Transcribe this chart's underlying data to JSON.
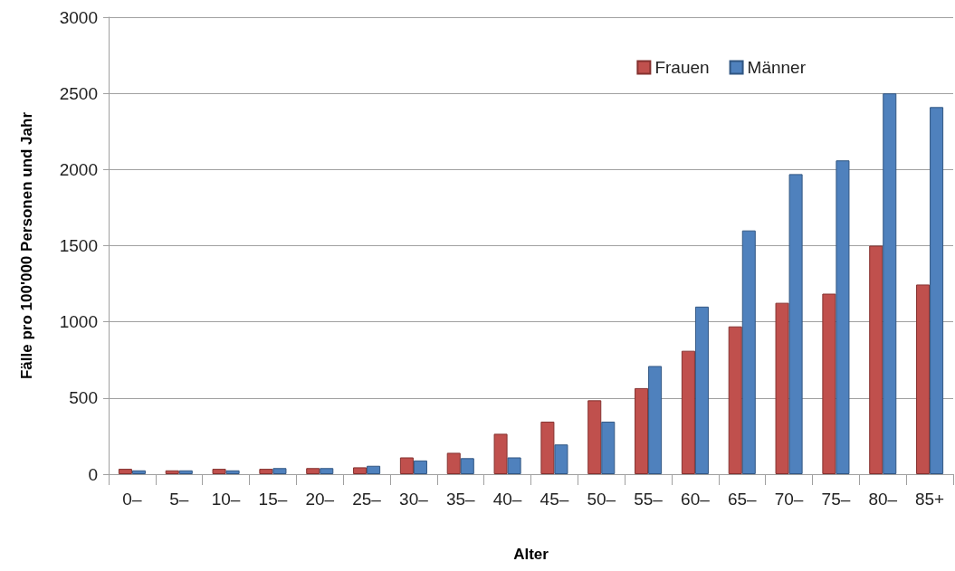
{
  "chart_data": {
    "type": "bar",
    "xlabel": "Alter",
    "ylabel": "Fälle pro 100'000 Personen und Jahr",
    "categories": [
      "0–",
      "5–",
      "10–",
      "15–",
      "20–",
      "25–",
      "30–",
      "35–",
      "40–",
      "45–",
      "50–",
      "55–",
      "60–",
      "65–",
      "70–",
      "75–",
      "80–",
      "85+"
    ],
    "series": [
      {
        "name": "Frauen",
        "color": "#c0504d",
        "values": [
          35,
          25,
          35,
          35,
          40,
          45,
          110,
          140,
          265,
          345,
          485,
          565,
          810,
          970,
          1125,
          1185,
          1500,
          1245
        ]
      },
      {
        "name": "Männer",
        "color": "#4f81bd",
        "values": [
          25,
          25,
          25,
          40,
          40,
          55,
          90,
          105,
          110,
          195,
          345,
          710,
          1100,
          1600,
          1970,
          2060,
          2500,
          2410
        ]
      }
    ],
    "ylim": [
      0,
      3000
    ],
    "yticks": [
      0,
      500,
      1000,
      1500,
      2000,
      2500,
      3000
    ],
    "grid": "y",
    "legend": "top right"
  }
}
